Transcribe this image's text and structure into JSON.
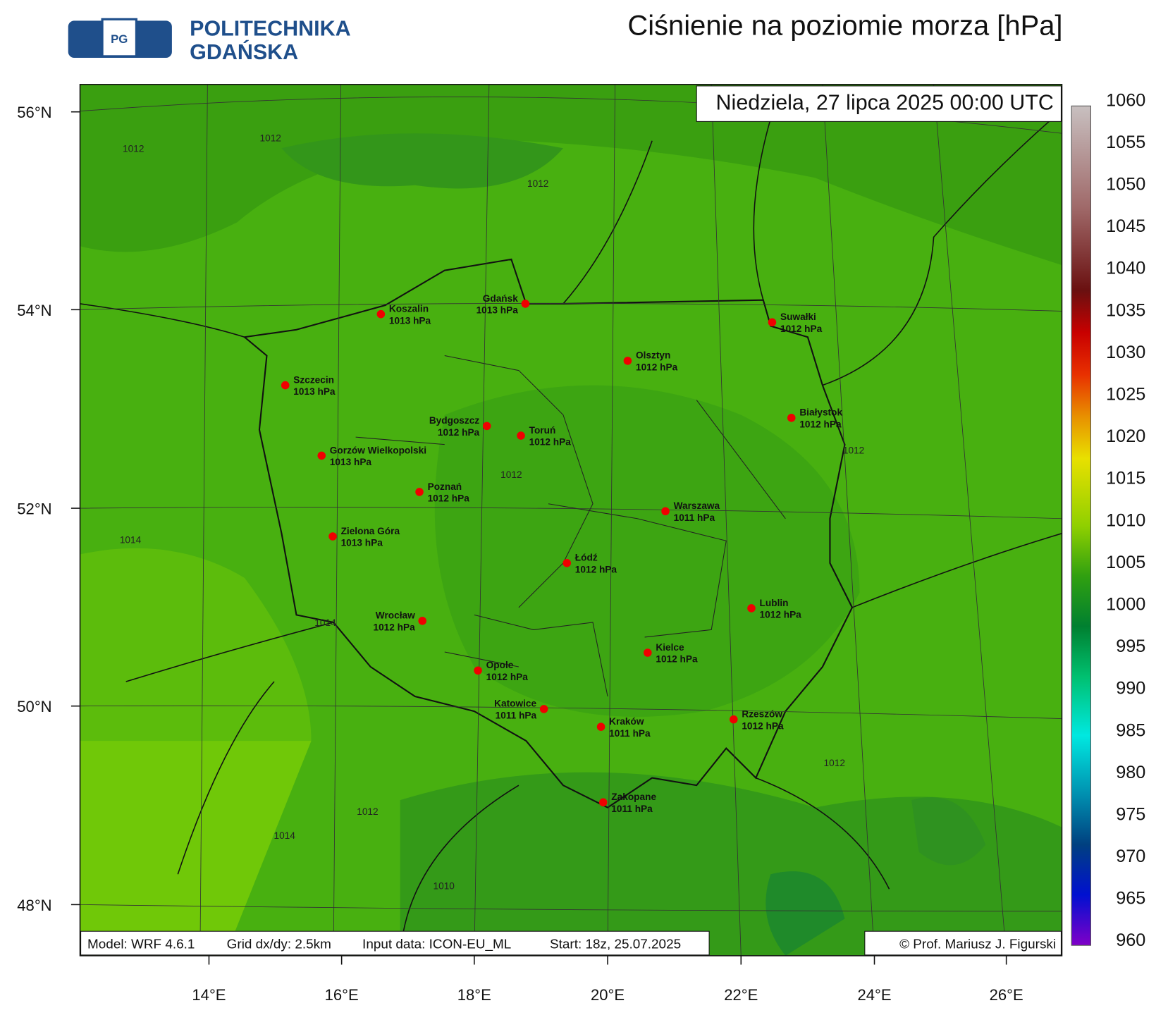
{
  "header": {
    "logo_line1": "POLITECHNIKA",
    "logo_line2": "GDAŃSKA",
    "title": "Ciśnienie na poziomie morza [hPa]"
  },
  "map": {
    "timestamp": "Niedziela, 27 lipca 2025 00:00 UTC",
    "cities": [
      {
        "name": "Koszalin",
        "pressure": "1013 hPa"
      },
      {
        "name": "Gdańsk",
        "pressure": "1013 hPa"
      },
      {
        "name": "Suwałki",
        "pressure": "1012 hPa"
      },
      {
        "name": "Olsztyn",
        "pressure": "1012 hPa"
      },
      {
        "name": "Szczecin",
        "pressure": "1013 hPa"
      },
      {
        "name": "Białystok",
        "pressure": "1012 hPa"
      },
      {
        "name": "Bydgoszcz",
        "pressure": "1012 hPa"
      },
      {
        "name": "Toruń",
        "pressure": "1012 hPa"
      },
      {
        "name": "Gorzów Wielkopolski",
        "pressure": "1013 hPa"
      },
      {
        "name": "Poznań",
        "pressure": "1012 hPa"
      },
      {
        "name": "Warszawa",
        "pressure": "1011 hPa"
      },
      {
        "name": "Zielona Góra",
        "pressure": "1013 hPa"
      },
      {
        "name": "Łódź",
        "pressure": "1012 hPa"
      },
      {
        "name": "Lublin",
        "pressure": "1012 hPa"
      },
      {
        "name": "Wrocław",
        "pressure": "1012 hPa"
      },
      {
        "name": "Kielce",
        "pressure": "1012 hPa"
      },
      {
        "name": "Opole",
        "pressure": "1012 hPa"
      },
      {
        "name": "Katowice",
        "pressure": "1011 hPa"
      },
      {
        "name": "Kraków",
        "pressure": "1011 hPa"
      },
      {
        "name": "Rzeszów",
        "pressure": "1012 hPa"
      },
      {
        "name": "Zakopane",
        "pressure": "1011 hPa"
      }
    ],
    "contour_labels": [
      "1012",
      "1012",
      "1012",
      "1012",
      "1012",
      "1014",
      "1014",
      "1012",
      "1012",
      "1014",
      "1010"
    ],
    "lat_labels": [
      "56°N",
      "54°N",
      "52°N",
      "50°N",
      "48°N"
    ],
    "lon_labels": [
      "14°E",
      "16°E",
      "18°E",
      "20°E",
      "22°E",
      "24°E",
      "26°E"
    ]
  },
  "footer": {
    "model": "Model: WRF 4.6.1",
    "grid": "Grid dx/dy: 2.5km",
    "input": "Input data: ICON-EU_ML",
    "start": "Start: 18z, 25.07.2025",
    "credit": "© Prof. Mariusz J. Figurski"
  },
  "colorbar": {
    "ticks": [
      1060,
      1055,
      1050,
      1045,
      1040,
      1035,
      1030,
      1025,
      1020,
      1015,
      1010,
      1005,
      1000,
      995,
      990,
      985,
      980,
      975,
      970,
      965,
      960
    ]
  }
}
